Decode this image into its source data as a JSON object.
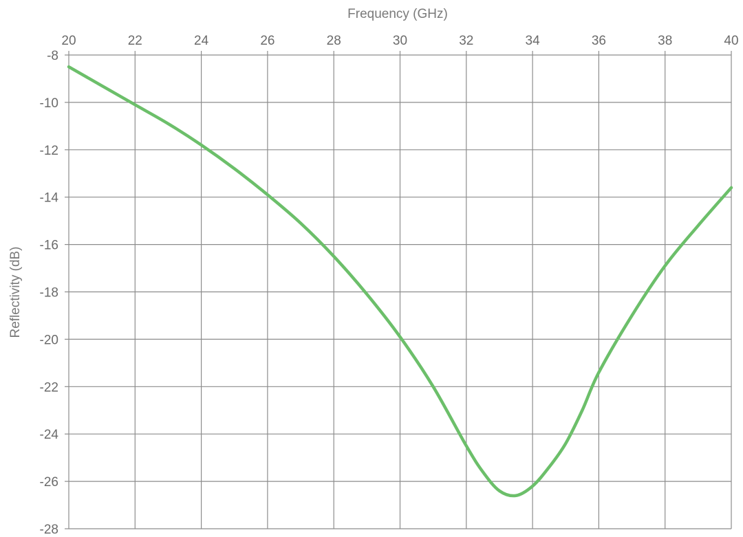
{
  "chart_data": {
    "type": "line",
    "title": "",
    "xlabel": "Frequency (GHz)",
    "ylabel": "Reflectivity (dB)",
    "x_axis_position": "top",
    "xlim": [
      20,
      40
    ],
    "ylim": [
      -28,
      -8
    ],
    "xticks": [
      20,
      22,
      24,
      26,
      28,
      30,
      32,
      34,
      36,
      38,
      40
    ],
    "yticks": [
      -8,
      -10,
      -12,
      -14,
      -16,
      -18,
      -20,
      -22,
      -24,
      -26,
      -28
    ],
    "grid": true,
    "line_color": "#6cbf6a",
    "series": [
      {
        "x": [
          20,
          21,
          22,
          23,
          24,
          25,
          26,
          27,
          28,
          29,
          30,
          31,
          32,
          32.5,
          33,
          33.5,
          34,
          34.5,
          35,
          35.5,
          36,
          37,
          38,
          39,
          40
        ],
        "y": [
          -8.5,
          -9.3,
          -10.1,
          -10.9,
          -11.8,
          -12.8,
          -13.9,
          -15.1,
          -16.5,
          -18.1,
          -19.9,
          -22.0,
          -24.5,
          -25.6,
          -26.4,
          -26.6,
          -26.2,
          -25.4,
          -24.4,
          -23.0,
          -21.4,
          -19.0,
          -16.9,
          -15.2,
          -13.6
        ]
      }
    ]
  }
}
